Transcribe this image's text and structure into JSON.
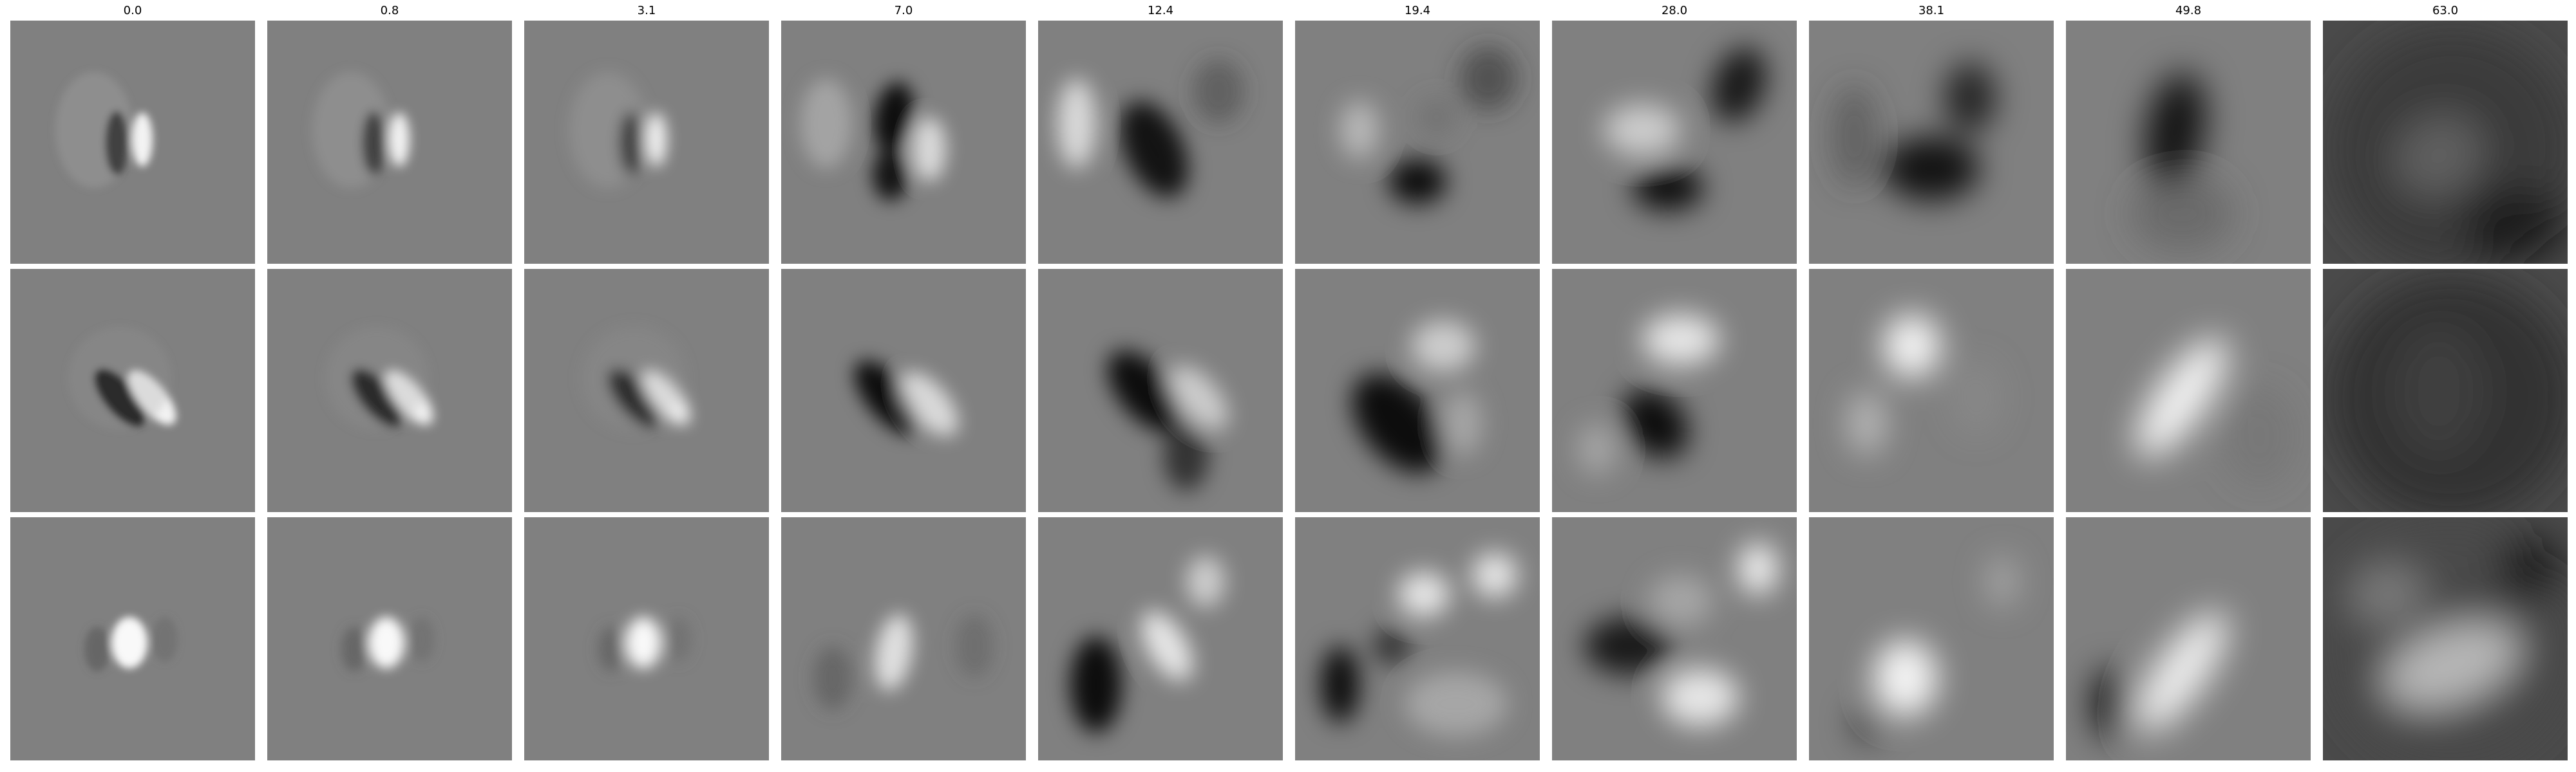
{
  "figure": {
    "columns": [
      {
        "label": "0.0"
      },
      {
        "label": "0.8"
      },
      {
        "label": "3.1"
      },
      {
        "label": "7.0"
      },
      {
        "label": "12.4"
      },
      {
        "label": "19.4"
      },
      {
        "label": "28.0"
      },
      {
        "label": "38.1"
      },
      {
        "label": "49.8"
      },
      {
        "label": "63.0"
      }
    ],
    "rows": 3,
    "colormap": "gray"
  }
}
